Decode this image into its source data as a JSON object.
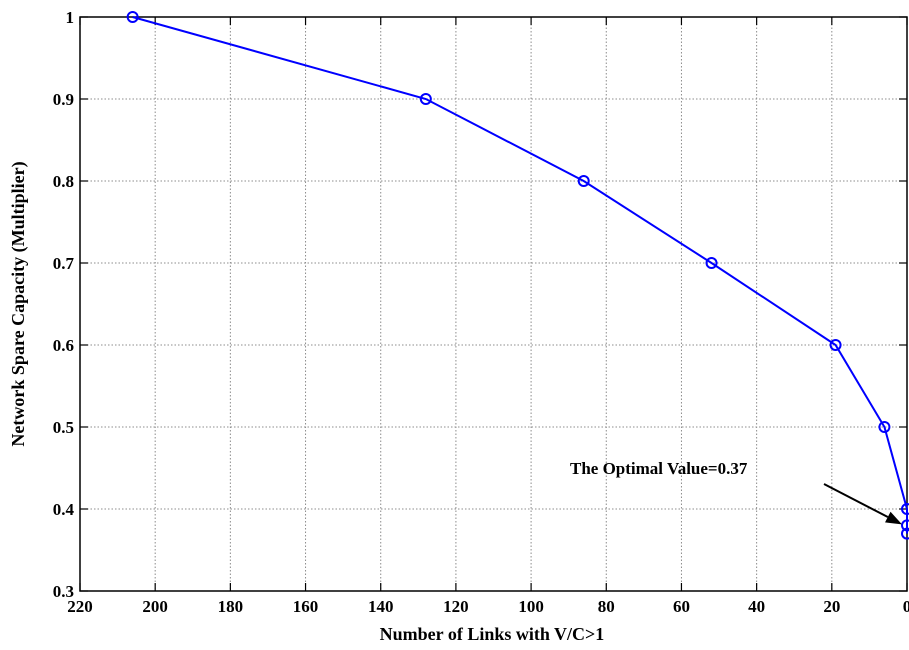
{
  "chart_data": {
    "type": "line",
    "title": "",
    "xlabel": "Number of Links with V/C>1",
    "ylabel": "Network Spare Capacity (Multiplier)",
    "xlim": [
      220,
      0
    ],
    "ylim": [
      0.3,
      1
    ],
    "x_reversed": true,
    "grid": true,
    "xticks": [
      220,
      200,
      180,
      160,
      140,
      120,
      100,
      80,
      60,
      40,
      20,
      0
    ],
    "yticks": [
      0.3,
      0.4,
      0.5,
      0.6,
      0.7,
      0.8,
      0.9,
      1
    ],
    "xtick_labels": [
      "220",
      "200",
      "180",
      "160",
      "140",
      "120",
      "100",
      "80",
      "60",
      "40",
      "20",
      "0"
    ],
    "ytick_labels": [
      "0.3",
      "0.4",
      "0.5",
      "0.6",
      "0.7",
      "0.8",
      "0.9",
      "1"
    ],
    "series": [
      {
        "color": "#0000ff",
        "marker": "circle",
        "x": [
          206,
          128,
          86,
          52,
          19,
          6,
          0,
          0,
          0
        ],
        "y": [
          1.0,
          0.9,
          0.8,
          0.7,
          0.6,
          0.5,
          0.4,
          0.38,
          0.37
        ]
      }
    ],
    "annotation": {
      "text": "The Optimal Value=0.37",
      "point": [
        0,
        0.38
      ]
    }
  }
}
